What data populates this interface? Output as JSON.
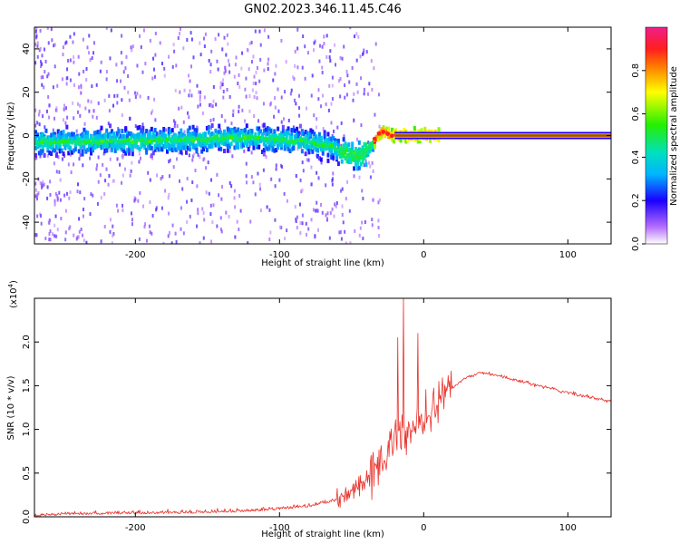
{
  "figure_title": "GN02.2023.346.11.45.C46",
  "chart_data": [
    {
      "type": "heatmap",
      "title": "",
      "xlabel": "Height of straight line (km)",
      "ylabel": "Frequency (Hz)",
      "xlim": [
        -270,
        130
      ],
      "ylim": [
        -50,
        50
      ],
      "xticks": [
        -200,
        -100,
        0,
        100
      ],
      "yticks": [
        -40,
        -20,
        0,
        20,
        40
      ],
      "grid": false,
      "colorbar": {
        "label": "Normalized spectral amplitude",
        "range": [
          0.0,
          1.0
        ],
        "ticks": [
          "0.0",
          "0.2",
          "0.4",
          "0.6",
          "0.8"
        ],
        "colormap": "rainbow (white-violet-blue-cyan-green-yellow-red-magenta)"
      },
      "ridge": {
        "description": "dominant frequency vs height",
        "x": [
          -270,
          -240,
          -200,
          -160,
          -120,
          -100,
          -80,
          -65,
          -55,
          -45,
          -40,
          -35,
          -30,
          -25,
          -20,
          -10,
          0,
          130
        ],
        "y": [
          -3,
          -3,
          -2.5,
          -2,
          -1,
          -2,
          -3,
          -5,
          -8,
          -10,
          -7,
          -3,
          2,
          0.5,
          0,
          0,
          0,
          0
        ]
      }
    },
    {
      "type": "line",
      "title": "",
      "xlabel": "Height of straight line (km)",
      "ylabel": "SNR (10 * v/v)",
      "y_multiplier_label": "(x10",
      "y_multiplier_exp": "4",
      "y_multiplier_close": ")",
      "xlim": [
        -270,
        130
      ],
      "ylim": [
        0,
        2.5
      ],
      "xticks": [
        -200,
        -100,
        0,
        100
      ],
      "yticks": [
        "0.0",
        "0.5",
        "1.0",
        "1.5",
        "2.0"
      ],
      "grid": false,
      "series": [
        {
          "color": "#e8322b",
          "x": [
            -270,
            -250,
            -200,
            -150,
            -120,
            -100,
            -80,
            -60,
            -50,
            -40,
            -30,
            -25,
            -20,
            -15,
            -10,
            0,
            10,
            20,
            30,
            40,
            50,
            60,
            80,
            100,
            130
          ],
          "y": [
            0.02,
            0.04,
            0.05,
            0.06,
            0.08,
            0.1,
            0.13,
            0.2,
            0.28,
            0.4,
            0.62,
            0.75,
            0.9,
            1.0,
            0.95,
            1.15,
            1.35,
            1.48,
            1.6,
            1.65,
            1.62,
            1.58,
            1.5,
            1.42,
            1.32
          ]
        }
      ],
      "spikes": [
        {
          "x": -14,
          "y": 2.5
        },
        {
          "x": -4,
          "y": 2.1
        },
        {
          "x": -18,
          "y": 2.05
        }
      ]
    }
  ]
}
